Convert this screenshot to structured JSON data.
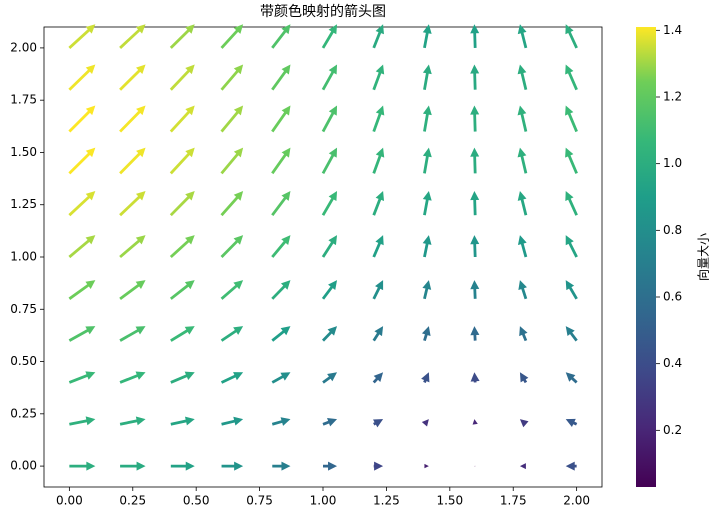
{
  "chart_data": {
    "type": "quiver",
    "title": "带颜色映射的箭头图",
    "x": [
      0,
      0.2,
      0.4,
      0.6,
      0.8,
      1.0,
      1.2,
      1.4,
      1.6,
      1.8,
      2.0
    ],
    "y": [
      0,
      0.2,
      0.4,
      0.6,
      0.8,
      1.0,
      1.2,
      1.4,
      1.6,
      1.8,
      2.0
    ],
    "u": [
      1.0,
      0.98,
      0.92,
      0.83,
      0.7,
      0.54,
      0.36,
      0.17,
      -0.03,
      -0.23,
      -0.42
    ],
    "v": [
      0,
      0.2,
      0.39,
      0.56,
      0.72,
      0.84,
      0.93,
      0.99,
      1.0,
      0.97,
      0.91
    ],
    "colormap": "viridis",
    "xlim": [
      -0.1,
      2.1
    ],
    "xticks": [
      {
        "value": 0,
        "label": "0.00"
      },
      {
        "value": 0.25,
        "label": "0.25"
      },
      {
        "value": 0.5,
        "label": "0.50"
      },
      {
        "value": 0.75,
        "label": "0.75"
      },
      {
        "value": 1,
        "label": "1.00"
      },
      {
        "value": 1.25,
        "label": "1.25"
      },
      {
        "value": 1.5,
        "label": "1.50"
      },
      {
        "value": 1.75,
        "label": "1.75"
      },
      {
        "value": 2,
        "label": "2.00"
      }
    ],
    "ylim": [
      -0.1,
      2.1
    ],
    "yticks": [
      {
        "value": 0,
        "label": "0.00"
      },
      {
        "value": 0.25,
        "label": "0.25"
      },
      {
        "value": 0.5,
        "label": "0.50"
      },
      {
        "value": 0.75,
        "label": "0.75"
      },
      {
        "value": 1,
        "label": "1.00"
      },
      {
        "value": 1.25,
        "label": "1.25"
      },
      {
        "value": 1.5,
        "label": "1.50"
      },
      {
        "value": 1.75,
        "label": "1.75"
      },
      {
        "value": 2,
        "label": "2.00"
      }
    ],
    "colorbar": {
      "label": "向量大小",
      "lim": [
        0.03,
        1.41
      ],
      "ticks": [
        0.2,
        0.4,
        0.6,
        0.8,
        {
          "value": 1,
          "label": "1.0"
        },
        1.2,
        1.4
      ]
    }
  }
}
